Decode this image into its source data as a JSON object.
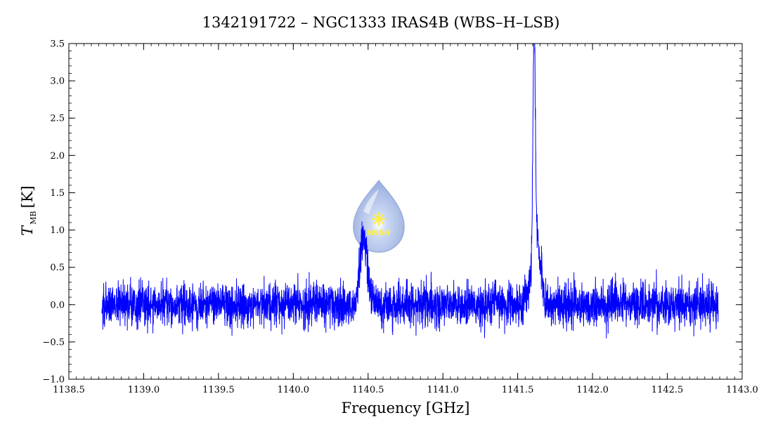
{
  "chart_data": {
    "type": "line",
    "title": "1342191722 – NGC1333 IRAS4B (WBS–H–LSB)",
    "xlabel": "Frequency [GHz]",
    "ylabel": {
      "main": "T",
      "sub": "MB",
      "unit": "[K]"
    },
    "xlim": [
      1138.5,
      1143.0
    ],
    "ylim": [
      -1.0,
      3.5
    ],
    "x_ticks": [
      1138.5,
      1139.0,
      1139.5,
      1140.0,
      1140.5,
      1141.0,
      1141.5,
      1142.0,
      1142.5,
      1143.0
    ],
    "x_tick_labels": [
      "1138.5",
      "1139.0",
      "1139.5",
      "1140.0",
      "1140.5",
      "1141.0",
      "1141.5",
      "1142.0",
      "1142.5",
      "1143.0"
    ],
    "y_ticks": [
      -1.0,
      -0.5,
      0.0,
      0.5,
      1.0,
      1.5,
      2.0,
      2.5,
      3.0,
      3.5
    ],
    "y_tick_labels": [
      "−1.0",
      "−0.5",
      "0.0",
      "0.5",
      "1.0",
      "1.5",
      "2.0",
      "2.5",
      "3.0",
      "3.5"
    ],
    "grid": false,
    "series": [
      {
        "color": "#0000ff",
        "x_range": [
          1138.72,
          1142.84
        ],
        "noise_rms": 0.14,
        "baseline": 0.0,
        "lines": [
          {
            "center": 1140.47,
            "peak": 0.9,
            "fwhm": 0.06
          },
          {
            "center": 1141.61,
            "peak": 2.95,
            "fwhm": 0.018
          },
          {
            "center": 1141.62,
            "peak": 0.9,
            "fwhm": 0.07
          }
        ]
      }
    ],
    "logo": {
      "text": "WISH",
      "colors": {
        "drop": "#a9bde6",
        "edge": "#7f97cf",
        "star": "#ffee44",
        "text": "#ffee44"
      }
    }
  }
}
